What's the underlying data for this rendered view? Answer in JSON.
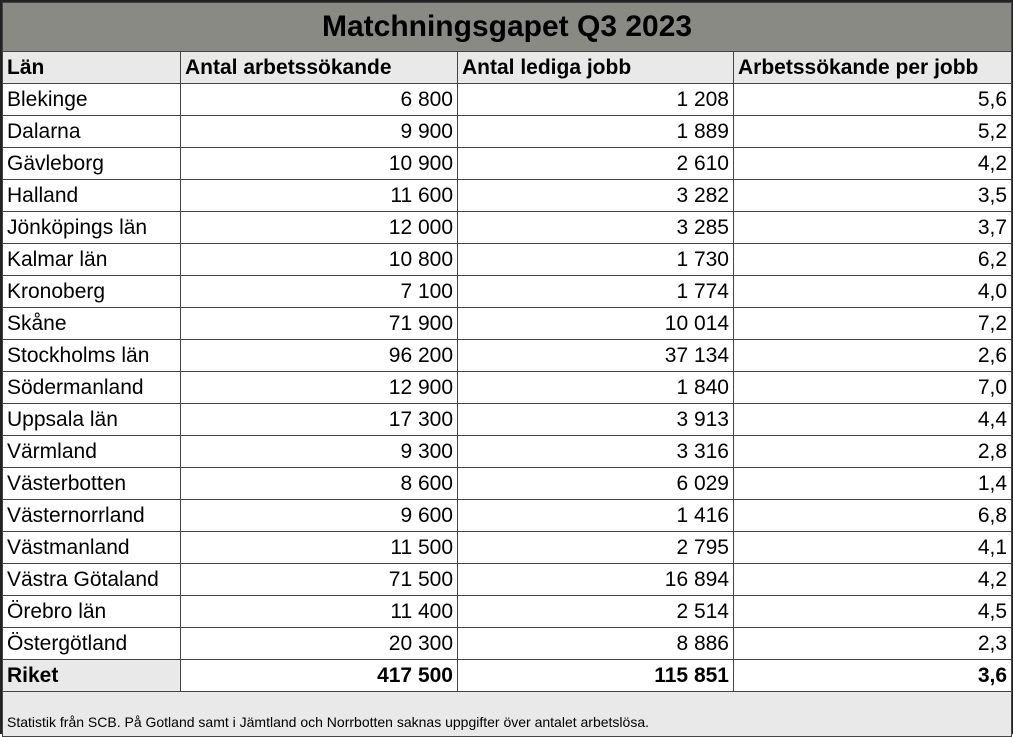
{
  "chart_data": {
    "type": "table",
    "title": "Matchningsgapet Q3 2023",
    "columns": [
      "Län",
      "Antal arbetssökande",
      "Antal lediga jobb",
      "Arbetssökande per jobb"
    ],
    "rows": [
      [
        "Blekinge",
        "6 800",
        "1 208",
        "5,6"
      ],
      [
        "Dalarna",
        "9 900",
        "1 889",
        "5,2"
      ],
      [
        "Gävleborg",
        "10 900",
        "2 610",
        "4,2"
      ],
      [
        "Halland",
        "11 600",
        "3 282",
        "3,5"
      ],
      [
        "Jönköpings län",
        "12 000",
        "3 285",
        "3,7"
      ],
      [
        "Kalmar län",
        "10 800",
        "1 730",
        "6,2"
      ],
      [
        "Kronoberg",
        "7 100",
        "1 774",
        "4,0"
      ],
      [
        "Skåne",
        "71 900",
        "10 014",
        "7,2"
      ],
      [
        "Stockholms län",
        "96 200",
        "37 134",
        "2,6"
      ],
      [
        "Södermanland",
        "12 900",
        "1 840",
        "7,0"
      ],
      [
        "Uppsala län",
        "17 300",
        "3 913",
        "4,4"
      ],
      [
        "Värmland",
        "9 300",
        "3 316",
        "2,8"
      ],
      [
        "Västerbotten",
        "8 600",
        "6 029",
        "1,4"
      ],
      [
        "Västernorrland",
        "9 600",
        "1 416",
        "6,8"
      ],
      [
        "Västmanland",
        "11 500",
        "2 795",
        "4,1"
      ],
      [
        "Västra Götaland",
        "71 500",
        "16 894",
        "4,2"
      ],
      [
        "Örebro län",
        "11 400",
        "2 514",
        "4,5"
      ],
      [
        "Östergötland",
        "20 300",
        "8 886",
        "2,3"
      ]
    ],
    "total": [
      "Riket",
      "417 500",
      "115 851",
      "3,6"
    ],
    "footnote": "Statistik från SCB. På Gotland samt i Jämtland och Norrbotten saknas uppgifter över antalet arbetslösa."
  }
}
